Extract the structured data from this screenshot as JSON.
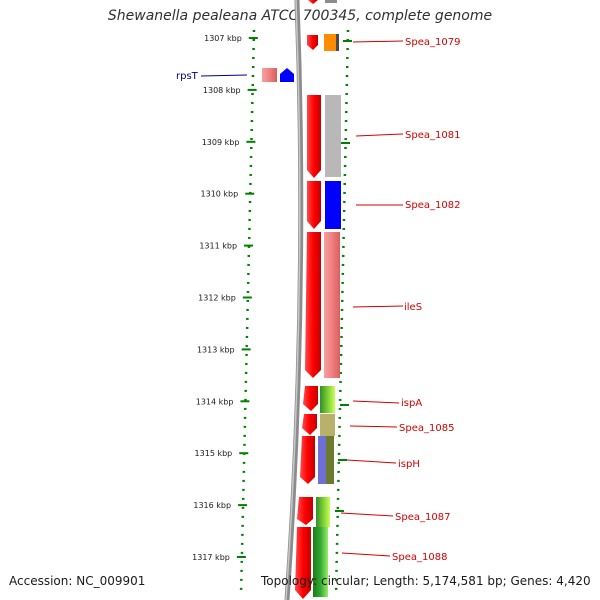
{
  "title": "Shewanella pealeana ATCC 700345, complete genome",
  "footer": {
    "accession": "Accession: NC_009901",
    "topology": "Topology: circular; Length: 5,174,581 bp; Genes: 4,420"
  },
  "scale": {
    "ticks": [
      "1307 kbp",
      "1308 kbp",
      "1309 kbp",
      "1310 kbp",
      "1311 kbp",
      "1312 kbp",
      "1313 kbp",
      "1314 kbp",
      "1315 kbp",
      "1316 kbp",
      "1317 kbp"
    ]
  },
  "gene_labels": {
    "rpsT": "rpsT",
    "spea_1079": "Spea_1079",
    "spea_1081": "Spea_1081",
    "spea_1082": "Spea_1082",
    "iles": "ileS",
    "ispa": "ispA",
    "spea_1085": "Spea_1085",
    "isph": "ispH",
    "spea_1087": "Spea_1087",
    "spea_1088": "Spea_1088"
  },
  "colors": {
    "gene_track": "#ff0000",
    "spea_1079": "#ff8c00",
    "spea_1081": "#b8b8b8",
    "spea_1082": "#0000ff",
    "iles": "#f08080",
    "ispa": "#7ccd32",
    "spea_1085": "#b8b16a",
    "isph": "#6f6fd8",
    "spea_1087": "#66cc33",
    "spea_1088": "#33aa33",
    "scale": "#008000",
    "label_line": "#d40000"
  }
}
